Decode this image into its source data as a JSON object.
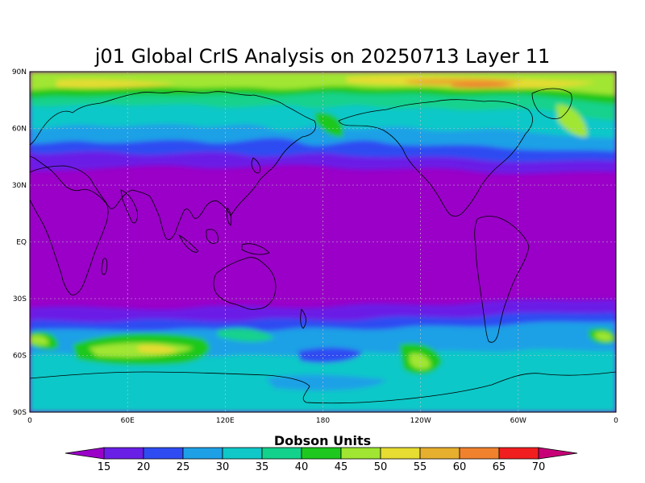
{
  "title": "j01 Global CrIS Analysis on 20250713 Layer 11",
  "map": {
    "lat_labels": [
      "90N",
      "60N",
      "30N",
      "EQ",
      "30S",
      "60S",
      "90S"
    ],
    "lon_labels": [
      "0",
      "60E",
      "120E",
      "180",
      "120W",
      "60W",
      "0"
    ]
  },
  "colorbar": {
    "title": "Dobson Units",
    "levels": [
      "15",
      "20",
      "25",
      "30",
      "35",
      "40",
      "45",
      "50",
      "55",
      "60",
      "65",
      "70"
    ],
    "colors": [
      "#9a00c8",
      "#6a1fe6",
      "#2f4cf2",
      "#1ea0e6",
      "#10c8c8",
      "#12d28c",
      "#1ec81e",
      "#a0e632",
      "#e6dc32",
      "#e6af2d",
      "#f0822d",
      "#f01e1e",
      "#c80078"
    ]
  }
}
